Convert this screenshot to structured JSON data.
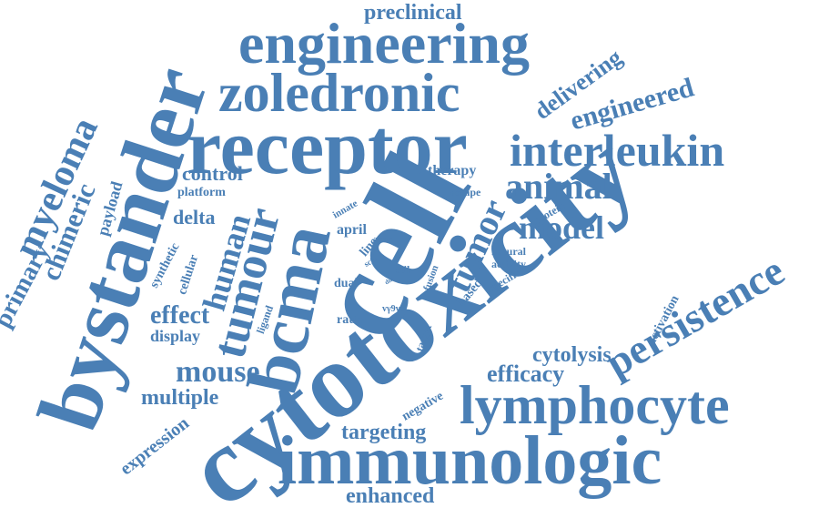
{
  "color": "#4a7fb5",
  "words": {
    "cytotoxicity": "cytotoxicity",
    "cell": "cell",
    "bystander": "bystander",
    "receptor": "receptor",
    "engineering": "engineering",
    "zoledronic": "zoledronic",
    "immunologic": "immunologic",
    "lymphocyte": "lymphocyte",
    "interleukin": "interleukin",
    "bcma": "bcma",
    "tumour": "tumour",
    "persistence": "persistence",
    "myeloma": "myeloma",
    "animal": "animal",
    "tumor": "tumor",
    "model": "model",
    "human": "human",
    "mouse": "mouse",
    "engineered": "engineered",
    "delivering": "delivering",
    "chimeric": "chimeric",
    "primary": "primary",
    "preclinical": "preclinical",
    "multiple": "multiple",
    "effect": "effect",
    "efficacy": "efficacy",
    "cytolysis": "cytolysis",
    "targeting": "targeting",
    "enhanced": "enhanced",
    "expression": "expression",
    "control": "control",
    "delta": "delta",
    "display": "display",
    "payload": "payload",
    "platform": "platform",
    "therapy": "therapy",
    "escape": "escape",
    "april": "april",
    "line": "line",
    "synthetic": "synthetic",
    "cellular": "cellular",
    "dual": "dual",
    "ratio": "ratio",
    "negative": "negative",
    "activation": "activation",
    "natural": "natural",
    "activity": "activity",
    "specific": "specific",
    "protein": "protein",
    "based": "based",
    "fusion": "fusion",
    "target": "target",
    "ligand": "ligand",
    "innate": "innate",
    "acar": "acar",
    "stil": "stil",
    "scfv": "scfv",
    "gamma_delta": "vγ9vδ",
    "dna": "dna"
  }
}
